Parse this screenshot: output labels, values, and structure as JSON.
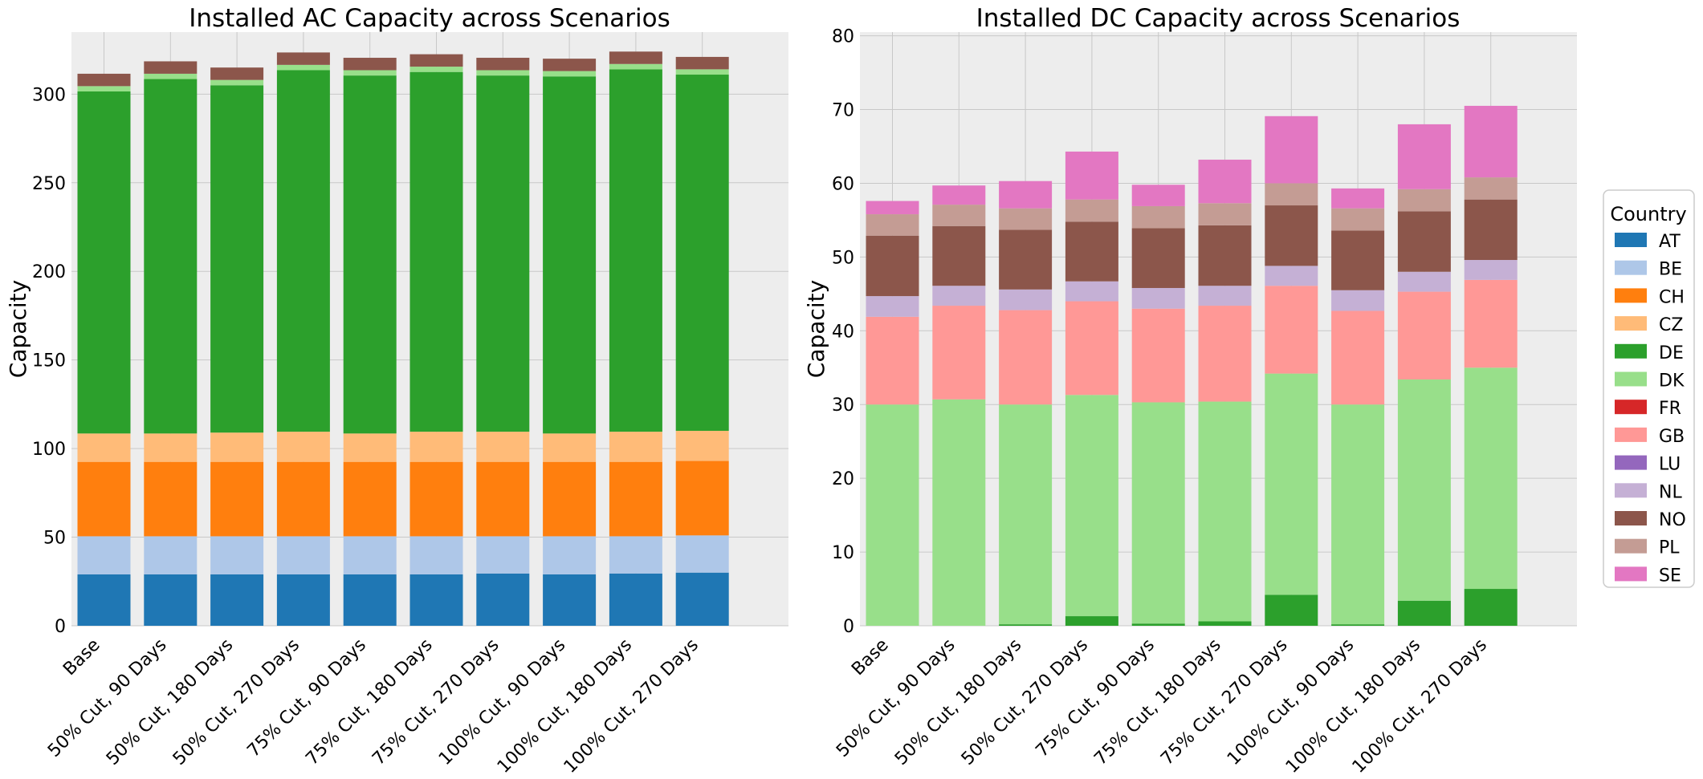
{
  "scenarios": [
    "Base",
    "50% Cut, 90 Days",
    "50% Cut, 180 Days",
    "50% Cut, 270 Days",
    "75% Cut, 90 Days",
    "75% Cut, 180 Days",
    "75% Cut, 270 Days",
    "100% Cut, 90 Days",
    "100% Cut, 180 Days",
    "100% Cut, 270 Days"
  ],
  "legend": {
    "title": "Country",
    "entries": [
      {
        "name": "AT",
        "color": "#1f77b4"
      },
      {
        "name": "BE",
        "color": "#aec7e8"
      },
      {
        "name": "CH",
        "color": "#ff7f0e"
      },
      {
        "name": "CZ",
        "color": "#ffbb78"
      },
      {
        "name": "DE",
        "color": "#2ca02c"
      },
      {
        "name": "DK",
        "color": "#98df8a"
      },
      {
        "name": "FR",
        "color": "#d62728"
      },
      {
        "name": "GB",
        "color": "#ff9896"
      },
      {
        "name": "LU",
        "color": "#9467bd"
      },
      {
        "name": "NL",
        "color": "#c5b0d5"
      },
      {
        "name": "NO",
        "color": "#8c564b"
      },
      {
        "name": "PL",
        "color": "#c49c94"
      },
      {
        "name": "SE",
        "color": "#e377c2"
      }
    ]
  },
  "chart_data": [
    {
      "type": "bar",
      "stacked": true,
      "title": "Installed AC Capacity across Scenarios",
      "xlabel": "",
      "ylabel": "Capacity",
      "ylim": [
        0,
        335
      ],
      "yticks": [
        0,
        50,
        100,
        150,
        200,
        250,
        300
      ],
      "grid": true,
      "categories": [
        "Base",
        "50% Cut, 90 Days",
        "50% Cut, 180 Days",
        "50% Cut, 270 Days",
        "75% Cut, 90 Days",
        "75% Cut, 180 Days",
        "75% Cut, 270 Days",
        "100% Cut, 90 Days",
        "100% Cut, 180 Days",
        "100% Cut, 270 Days"
      ],
      "series": [
        {
          "name": "AT",
          "color": "#1f77b4",
          "values": [
            29,
            29,
            29,
            29,
            29,
            29,
            29.5,
            29,
            29.5,
            30
          ]
        },
        {
          "name": "BE",
          "color": "#aec7e8",
          "values": [
            21.5,
            21.5,
            21.5,
            21.5,
            21.5,
            21.5,
            21,
            21.5,
            21,
            21
          ]
        },
        {
          "name": "CH",
          "color": "#ff7f0e",
          "values": [
            42,
            42,
            42,
            42,
            42,
            42,
            42,
            42,
            42,
            42
          ]
        },
        {
          "name": "CZ",
          "color": "#ffbb78",
          "values": [
            16,
            16,
            16.5,
            17,
            16,
            17,
            17,
            16,
            17,
            17
          ]
        },
        {
          "name": "DE",
          "color": "#2ca02c",
          "values": [
            193,
            200,
            196,
            204,
            202,
            203,
            201,
            201.5,
            204.5,
            201
          ]
        },
        {
          "name": "DK",
          "color": "#98df8a",
          "values": [
            3,
            3,
            3,
            3,
            3,
            3,
            3,
            3,
            3,
            3
          ]
        },
        {
          "name": "NO",
          "color": "#8c564b",
          "values": [
            7,
            7,
            7,
            7,
            7,
            7,
            7,
            7,
            7,
            7
          ]
        }
      ]
    },
    {
      "type": "bar",
      "stacked": true,
      "title": "Installed DC Capacity across Scenarios",
      "xlabel": "",
      "ylabel": "Capacity",
      "ylim": [
        0,
        80.5
      ],
      "yticks": [
        0,
        10,
        20,
        30,
        40,
        50,
        60,
        70,
        80
      ],
      "grid": true,
      "categories": [
        "Base",
        "50% Cut, 90 Days",
        "50% Cut, 180 Days",
        "50% Cut, 270 Days",
        "75% Cut, 90 Days",
        "75% Cut, 180 Days",
        "75% Cut, 270 Days",
        "100% Cut, 90 Days",
        "100% Cut, 180 Days",
        "100% Cut, 270 Days"
      ],
      "series": [
        {
          "name": "DE",
          "color": "#2ca02c",
          "values": [
            0,
            0,
            0.2,
            1.3,
            0.3,
            0.6,
            4.2,
            0.2,
            3.4,
            5.0
          ]
        },
        {
          "name": "DK",
          "color": "#98df8a",
          "values": [
            30,
            30.7,
            29.8,
            30.0,
            30.0,
            29.8,
            30.0,
            29.8,
            30.0,
            30.0
          ]
        },
        {
          "name": "GB",
          "color": "#ff9896",
          "values": [
            11.9,
            12.7,
            12.8,
            12.7,
            12.7,
            13.0,
            11.9,
            12.7,
            11.9,
            11.9
          ]
        },
        {
          "name": "NL",
          "color": "#c5b0d5",
          "values": [
            2.8,
            2.7,
            2.8,
            2.7,
            2.8,
            2.7,
            2.7,
            2.8,
            2.7,
            2.7
          ]
        },
        {
          "name": "NO",
          "color": "#8c564b",
          "values": [
            8.2,
            8.1,
            8.1,
            8.1,
            8.1,
            8.2,
            8.2,
            8.1,
            8.2,
            8.2
          ]
        },
        {
          "name": "PL",
          "color": "#c49c94",
          "values": [
            2.9,
            2.9,
            2.9,
            3.0,
            3.0,
            3.0,
            3.0,
            3.0,
            3.0,
            3.0
          ]
        },
        {
          "name": "SE",
          "color": "#e377c2",
          "values": [
            1.8,
            2.6,
            3.7,
            6.5,
            2.9,
            5.9,
            9.1,
            2.7,
            8.8,
            9.7
          ]
        }
      ]
    }
  ]
}
